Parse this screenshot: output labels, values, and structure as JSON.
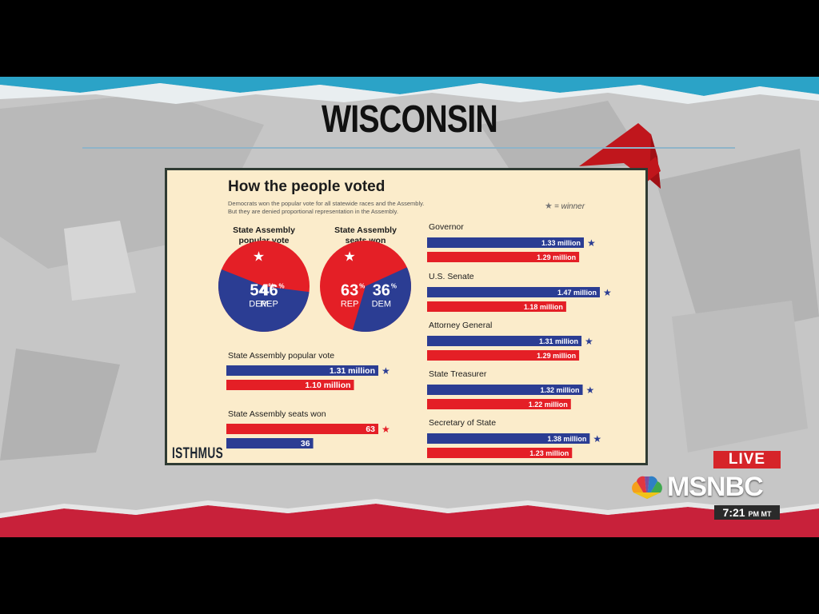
{
  "headline": "WISCONSIN",
  "graphic": {
    "title": "How the people voted",
    "subtitle_line1": "Democrats won the popular vote for all statewide races and the Assembly.",
    "subtitle_line2": "But they are denied proportional representation in the Assembly.",
    "legend": "= winner",
    "brand": "ISTHMUS"
  },
  "broadcast": {
    "live_label": "LIVE",
    "network": "MSNBC",
    "time": "7:21",
    "time_suffix": "PM MT"
  },
  "colors": {
    "dem": "#2b3d93",
    "rep": "#e41f26",
    "panel": "#fbeccb",
    "arrow": "#c0161c"
  },
  "chart_data": [
    {
      "type": "pie",
      "title_lines": [
        "State Assembly",
        "popular vote"
      ],
      "slices": [
        {
          "party": "DEM",
          "value": 54,
          "label": "54",
          "winner": true
        },
        {
          "party": "REP",
          "value": 46,
          "label": "46",
          "winner": false
        }
      ]
    },
    {
      "type": "pie",
      "title_lines": [
        "State Assembly",
        "seats won"
      ],
      "slices": [
        {
          "party": "DEM",
          "value": 36,
          "label": "36",
          "winner": false
        },
        {
          "party": "REP",
          "value": 63,
          "label": "63",
          "winner": true
        }
      ]
    },
    {
      "type": "bar",
      "title": "State Assembly popular vote",
      "bars": [
        {
          "party": "DEM",
          "value": 1.31,
          "label": "1.31 million",
          "winner": true
        },
        {
          "party": "REP",
          "value": 1.1,
          "label": "1.10 million",
          "winner": false
        }
      ]
    },
    {
      "type": "bar",
      "title": "State Assembly seats won",
      "bars": [
        {
          "party": "REP",
          "value": 63,
          "label": "63",
          "winner": true
        },
        {
          "party": "DEM",
          "value": 36,
          "label": "36",
          "winner": false
        }
      ]
    },
    {
      "type": "bar",
      "title": "Governor",
      "bars": [
        {
          "party": "DEM",
          "value": 1.33,
          "label": "1.33 million",
          "winner": true
        },
        {
          "party": "REP",
          "value": 1.29,
          "label": "1.29 million",
          "winner": false
        }
      ]
    },
    {
      "type": "bar",
      "title": "U.S. Senate",
      "bars": [
        {
          "party": "DEM",
          "value": 1.47,
          "label": "1.47 million",
          "winner": true
        },
        {
          "party": "REP",
          "value": 1.18,
          "label": "1.18 million",
          "winner": false
        }
      ]
    },
    {
      "type": "bar",
      "title": "Attorney General",
      "bars": [
        {
          "party": "DEM",
          "value": 1.31,
          "label": "1.31 million",
          "winner": true
        },
        {
          "party": "REP",
          "value": 1.29,
          "label": "1.29 million",
          "winner": false
        }
      ]
    },
    {
      "type": "bar",
      "title": "State Treasurer",
      "bars": [
        {
          "party": "DEM",
          "value": 1.32,
          "label": "1.32 million",
          "winner": true
        },
        {
          "party": "REP",
          "value": 1.22,
          "label": "1.22 million",
          "winner": false
        }
      ]
    },
    {
      "type": "bar",
      "title": "Secretary of State",
      "bars": [
        {
          "party": "DEM",
          "value": 1.38,
          "label": "1.38 million",
          "winner": true
        },
        {
          "party": "REP",
          "value": 1.23,
          "label": "1.23 million",
          "winner": false
        }
      ]
    }
  ]
}
